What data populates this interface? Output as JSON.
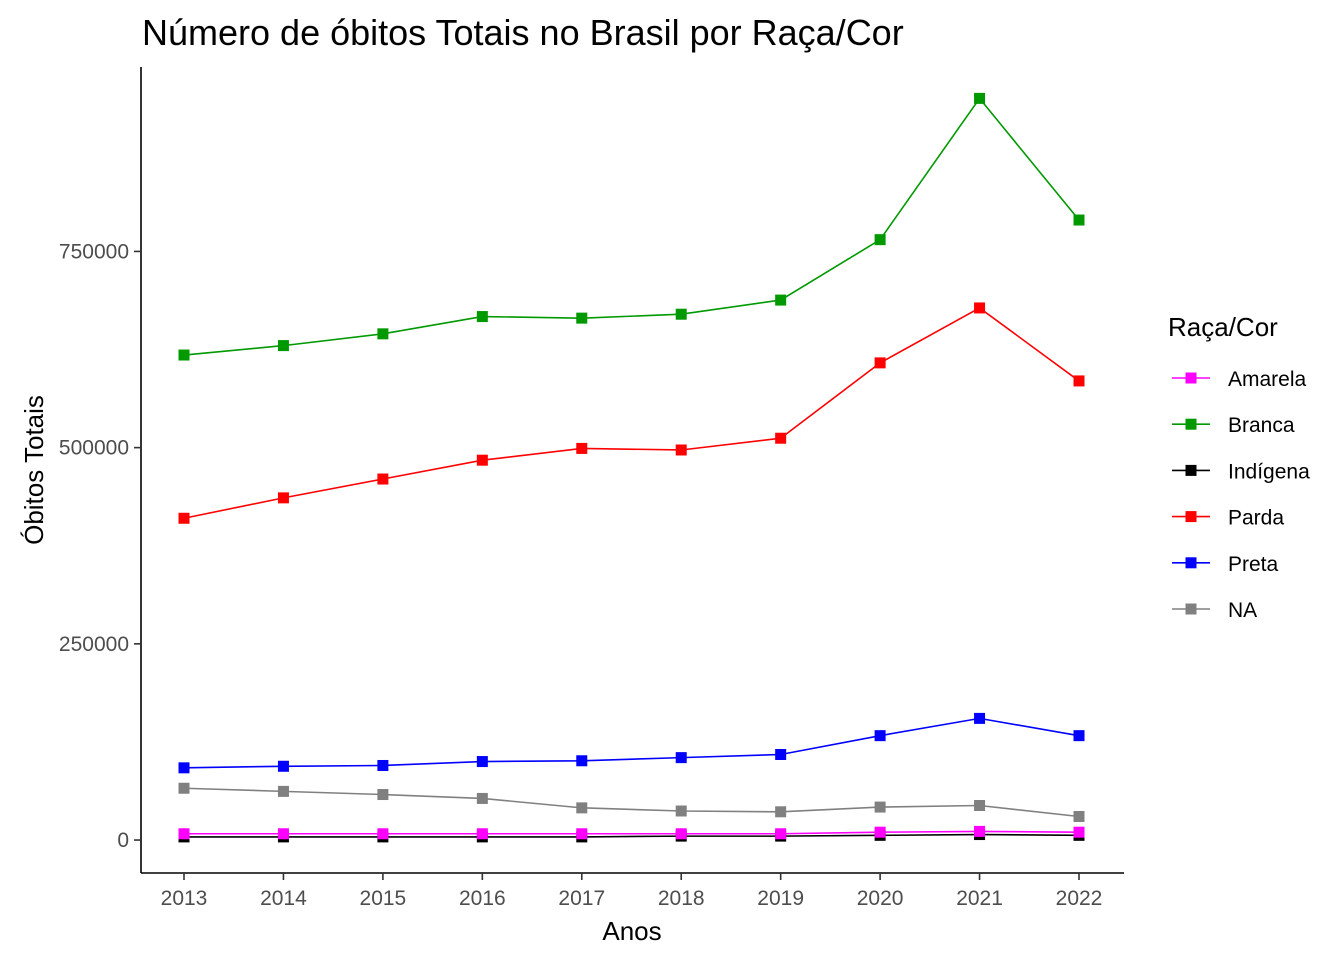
{
  "chart_data": {
    "type": "line",
    "title": "Número de óbitos Totais no Brasil por Raça/Cor",
    "xlabel": "Anos",
    "ylabel": "Óbitos Totais",
    "x": [
      2013,
      2014,
      2015,
      2016,
      2017,
      2018,
      2019,
      2020,
      2021,
      2022
    ],
    "x_tick_labels": [
      "2013",
      "2014",
      "2015",
      "2016",
      "2017",
      "2018",
      "2019",
      "2020",
      "2021",
      "2022"
    ],
    "y_ticks": [
      0,
      250000,
      500000,
      750000
    ],
    "y_tick_labels": [
      "0",
      "250000",
      "500000",
      "750000"
    ],
    "ylim": [
      -42000,
      985000
    ],
    "grid": false,
    "legend_title": "Raça/Cor",
    "legend_position": "right",
    "series": [
      {
        "name": "Amarela",
        "color": "#FF00FF",
        "values": [
          8000,
          8000,
          8000,
          8000,
          8000,
          8000,
          8000,
          10000,
          11000,
          10000
        ]
      },
      {
        "name": "Branca",
        "color": "#009900",
        "values": [
          618000,
          630000,
          645000,
          667000,
          665000,
          670000,
          688000,
          765000,
          945000,
          790000
        ]
      },
      {
        "name": "Indígena",
        "color": "#000000",
        "values": [
          4000,
          4000,
          4000,
          4000,
          4000,
          5000,
          5000,
          6000,
          7000,
          6000
        ]
      },
      {
        "name": "Parda",
        "color": "#FF0000",
        "values": [
          410000,
          436000,
          460000,
          484000,
          499000,
          497000,
          512000,
          608000,
          678000,
          585000
        ]
      },
      {
        "name": "Preta",
        "color": "#0000FF",
        "values": [
          92000,
          94000,
          95000,
          100000,
          101000,
          105000,
          109000,
          133000,
          155000,
          133000
        ]
      },
      {
        "name": "NA",
        "color": "#808080",
        "values": [
          66000,
          62000,
          58000,
          53000,
          41000,
          37000,
          36000,
          42000,
          44000,
          30000
        ]
      }
    ]
  }
}
